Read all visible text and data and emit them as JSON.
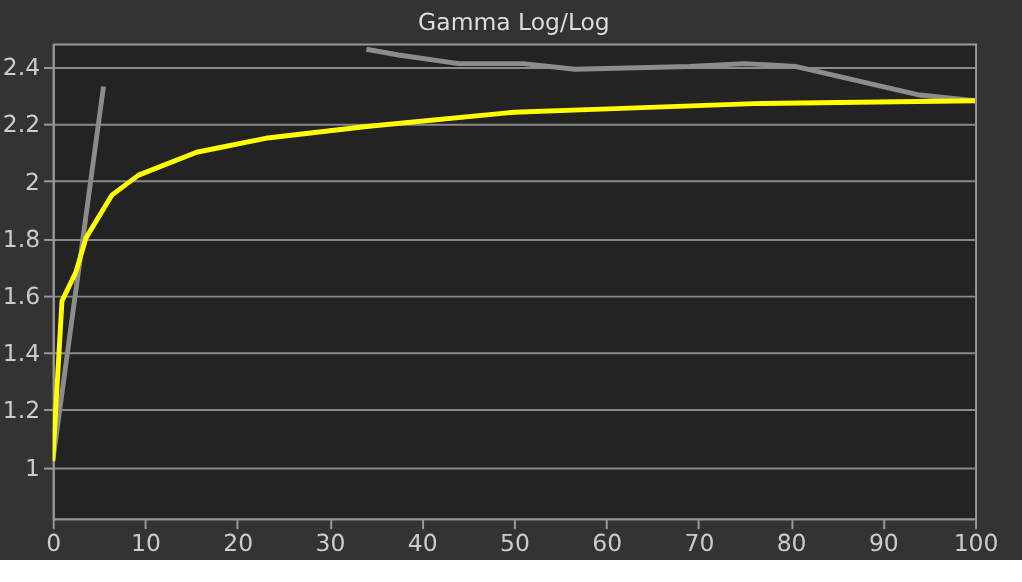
{
  "chart_data": {
    "type": "line",
    "title": "Gamma Log/Log",
    "series": [
      {
        "color": "#8c8c8c",
        "x": [
          0,
          5.5,
          20,
          34,
          37.5,
          44,
          51,
          56.6,
          69,
          75,
          80.5,
          94,
          100
        ],
        "values": [
          1.02,
          2.33,
          null,
          2.46,
          2.44,
          2.41,
          2.41,
          2.39,
          2.4,
          2.41,
          2.4,
          2.3,
          2.28
        ]
      },
      {
        "color": "#ffff00",
        "x": [
          0,
          1,
          2.5,
          3.6,
          6.4,
          9.3,
          15.6,
          23.3,
          34,
          50,
          58.7,
          76,
          100
        ],
        "values": [
          1.02,
          1.58,
          1.68,
          1.8,
          1.95,
          2.02,
          2.1,
          2.15,
          2.19,
          2.24,
          2.25,
          2.27,
          2.28
        ]
      }
    ],
    "xlim": [
      0,
      100
    ],
    "xticks": [
      0,
      10,
      20,
      30,
      40,
      50,
      60,
      70,
      80,
      90,
      100
    ],
    "ylim": [
      0.82,
      2.48
    ],
    "yticks": [
      1,
      1.2,
      1.4,
      1.6,
      1.8,
      2,
      2.2,
      2.4
    ],
    "grid": "y",
    "legend": false,
    "marker": "none",
    "line_style": "solid"
  }
}
